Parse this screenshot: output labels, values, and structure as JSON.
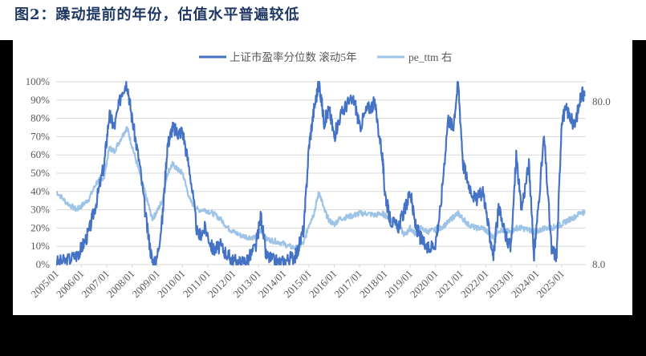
{
  "title": "图2：躁动提前的年份，估值水平普遍较低",
  "legend": [
    {
      "label": "上证市盈率分位数 滚动5年",
      "color": "#4472c4"
    },
    {
      "label": "pe_ttm 右",
      "color": "#9dc3e6"
    }
  ],
  "chart_data": {
    "type": "line",
    "title": "图2：躁动提前的年份，估值水平普遍较低",
    "xlabel": "",
    "ylabel": "",
    "left_axis": {
      "ticks": [
        "0%",
        "10%",
        "20%",
        "30%",
        "40%",
        "50%",
        "60%",
        "70%",
        "80%",
        "90%",
        "100%"
      ],
      "range": [
        0,
        100
      ]
    },
    "right_axis": {
      "ticks": [
        "8.0",
        "80.0"
      ],
      "scale": "log",
      "range": [
        8.0,
        80.0
      ]
    },
    "x_ticks": [
      "2005/01",
      "2006/01",
      "2007/01",
      "2008/01",
      "2009/01",
      "2010/01",
      "2011/01",
      "2012/01",
      "2013/01",
      "2014/01",
      "2015/01",
      "2016/01",
      "2017/01",
      "2018/01",
      "2019/01",
      "2020/01",
      "2021/01",
      "2022/01",
      "2023/01",
      "2024/01",
      "2025/01"
    ],
    "grid": true,
    "legend_position": "top",
    "series": [
      {
        "name": "上证市盈率分位数 滚动5年",
        "axis": "left",
        "x": [
          2005.0,
          2005.4,
          2005.8,
          2006.0,
          2006.3,
          2006.6,
          2006.9,
          2007.1,
          2007.3,
          2007.6,
          2007.8,
          2008.0,
          2008.3,
          2008.6,
          2008.8,
          2008.95,
          2009.2,
          2009.4,
          2009.6,
          2009.8,
          2010.0,
          2010.3,
          2010.6,
          2010.9,
          2011.2,
          2011.5,
          2011.8,
          2012.0,
          2012.3,
          2012.6,
          2012.9,
          2013.1,
          2013.3,
          2013.6,
          2013.9,
          2014.2,
          2014.5,
          2014.8,
          2015.0,
          2015.2,
          2015.4,
          2015.6,
          2015.8,
          2016.0,
          2016.2,
          2016.5,
          2016.8,
          2017.0,
          2017.3,
          2017.6,
          2017.9,
          2018.0,
          2018.2,
          2018.5,
          2018.8,
          2019.0,
          2019.2,
          2019.4,
          2019.7,
          2020.0,
          2020.2,
          2020.5,
          2020.7,
          2020.9,
          2021.1,
          2021.3,
          2021.6,
          2021.9,
          2022.1,
          2022.3,
          2022.5,
          2022.8,
          2023.0,
          2023.2,
          2023.4,
          2023.7,
          2023.9,
          2024.0,
          2024.3,
          2024.6,
          2024.8,
          2025.0,
          2025.2,
          2025.5,
          2025.8,
          2025.9
        ],
        "values": [
          1,
          2,
          5,
          9,
          18,
          35,
          55,
          82,
          75,
          95,
          100,
          80,
          55,
          20,
          2,
          0,
          25,
          65,
          75,
          72,
          73,
          50,
          15,
          20,
          8,
          10,
          5,
          2,
          1,
          3,
          10,
          27,
          5,
          2,
          1,
          3,
          5,
          20,
          65,
          85,
          100,
          78,
          85,
          70,
          80,
          88,
          90,
          75,
          85,
          88,
          60,
          40,
          25,
          20,
          30,
          40,
          22,
          15,
          8,
          12,
          30,
          80,
          75,
          100,
          55,
          45,
          35,
          40,
          20,
          5,
          30,
          15,
          10,
          60,
          30,
          55,
          5,
          20,
          70,
          8,
          5,
          80,
          85,
          75,
          95,
          92
        ],
        "color": "#4472c4"
      },
      {
        "name": "pe_ttm 右",
        "axis": "right",
        "x": [
          2005.0,
          2005.4,
          2005.8,
          2006.0,
          2006.3,
          2006.6,
          2006.9,
          2007.1,
          2007.3,
          2007.6,
          2007.8,
          2008.0,
          2008.3,
          2008.6,
          2008.8,
          2008.95,
          2009.2,
          2009.4,
          2009.6,
          2009.8,
          2010.0,
          2010.3,
          2010.6,
          2010.9,
          2011.2,
          2011.5,
          2011.8,
          2012.0,
          2012.3,
          2012.6,
          2012.9,
          2013.1,
          2013.3,
          2013.6,
          2013.9,
          2014.2,
          2014.5,
          2014.8,
          2015.0,
          2015.2,
          2015.4,
          2015.6,
          2015.8,
          2016.0,
          2016.2,
          2016.5,
          2016.8,
          2017.0,
          2017.3,
          2017.6,
          2017.9,
          2018.0,
          2018.2,
          2018.5,
          2018.8,
          2019.0,
          2019.2,
          2019.4,
          2019.7,
          2020.0,
          2020.2,
          2020.5,
          2020.7,
          2020.9,
          2021.1,
          2021.3,
          2021.6,
          2021.9,
          2022.1,
          2022.3,
          2022.5,
          2022.8,
          2023.0,
          2023.2,
          2023.4,
          2023.7,
          2023.9,
          2024.0,
          2024.3,
          2024.6,
          2024.8,
          2025.0,
          2025.2,
          2025.5,
          2025.8,
          2025.9
        ],
        "values_as_left_pct_position": [
          40,
          34,
          30,
          32,
          36,
          45,
          48,
          64,
          62,
          70,
          75,
          65,
          50,
          35,
          25,
          28,
          35,
          50,
          55,
          52,
          50,
          35,
          30,
          30,
          28,
          25,
          20,
          18,
          16,
          15,
          15,
          19,
          14,
          13,
          12,
          10,
          9,
          12,
          22,
          28,
          40,
          30,
          24,
          22,
          25,
          26,
          27,
          28,
          28,
          27,
          28,
          27,
          25,
          22,
          16,
          20,
          17,
          20,
          18,
          19,
          20,
          23,
          26,
          28,
          25,
          22,
          20,
          20,
          17,
          15,
          19,
          18,
          18,
          20,
          20,
          19,
          18,
          18,
          20,
          20,
          21,
          22,
          24,
          26,
          29,
          28
        ],
        "approx_values": [
          26.0,
          21.4,
          18.8,
          19.9,
          22.4,
          26.8,
          28.9,
          39.1,
          38.6,
          44.7,
          49.5,
          41.0,
          32.7,
          24.0,
          18.8,
          19.9,
          24.0,
          32.7,
          36.0,
          34.3,
          32.7,
          24.0,
          21.4,
          21.4,
          20.4,
          19.3,
          17.0,
          16.2,
          15.5,
          15.0,
          15.0,
          16.6,
          14.8,
          14.3,
          13.8,
          12.9,
          12.4,
          13.8,
          19.3,
          24.0,
          26.0,
          21.4,
          18.0,
          17.5,
          19.3,
          19.9,
          20.4,
          20.4,
          20.4,
          19.9,
          20.4,
          19.9,
          19.3,
          17.5,
          14.6,
          16.6,
          15.5,
          16.6,
          15.8,
          16.2,
          16.6,
          17.5,
          19.3,
          20.4,
          19.3,
          17.5,
          16.6,
          16.6,
          15.5,
          14.8,
          16.2,
          15.8,
          15.8,
          16.6,
          16.6,
          16.2,
          15.8,
          15.8,
          16.6,
          16.6,
          17.0,
          17.5,
          18.3,
          19.3,
          20.9,
          20.4
        ],
        "color": "#9dc3e6"
      }
    ]
  }
}
